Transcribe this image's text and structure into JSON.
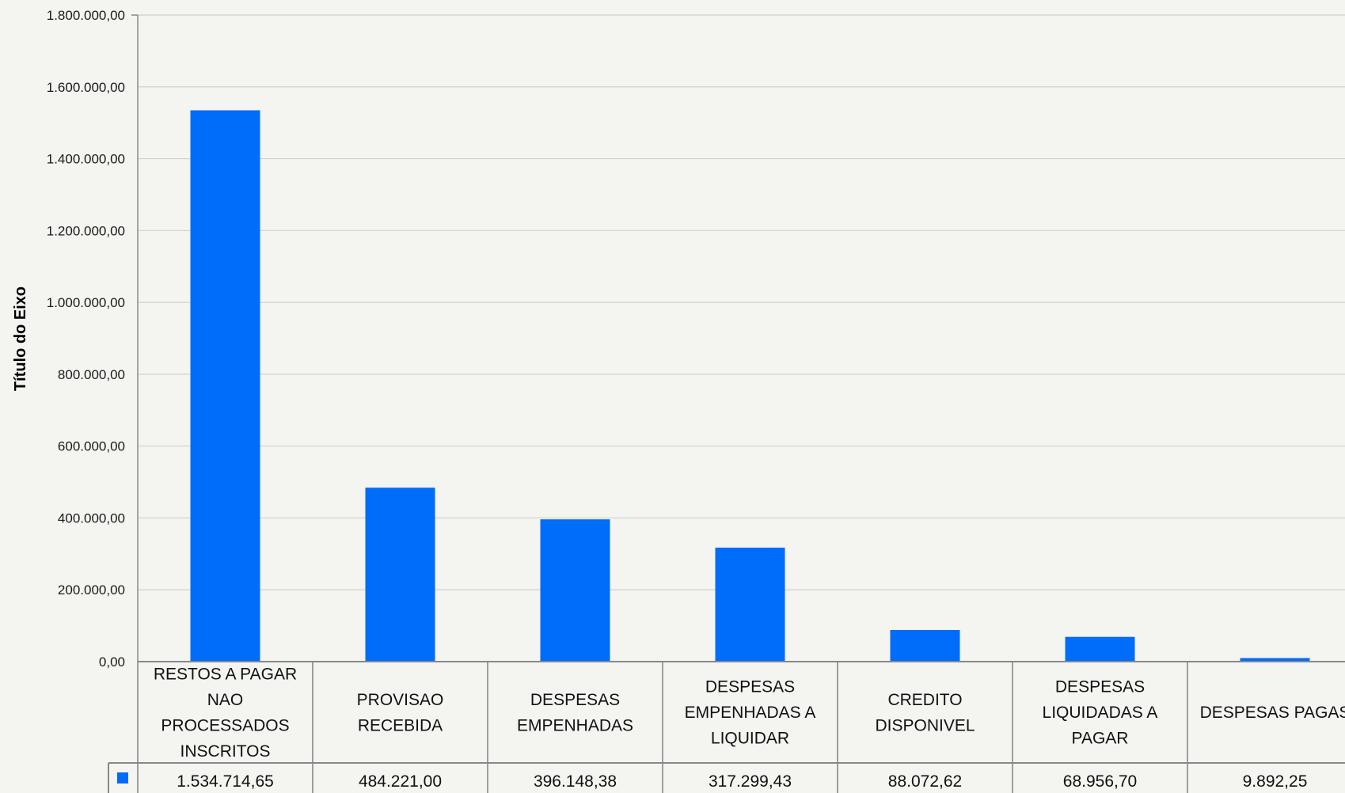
{
  "chart_data": {
    "type": "bar",
    "ylabel": "Título do Eixo",
    "ylim": [
      0,
      1800000
    ],
    "ytick_step": 200000,
    "yticks": [
      "0,00",
      "200.000,00",
      "400.000,00",
      "600.000,00",
      "800.000,00",
      "1.000.000,00",
      "1.200.000,00",
      "1.400.000,00",
      "1.600.000,00",
      "1.800.000,00"
    ],
    "grid": true,
    "legend": "data-table",
    "categories": [
      [
        "RESTOS A PAGAR",
        "NAO",
        "PROCESSADOS",
        "INSCRITOS"
      ],
      [
        "PROVISAO",
        "RECEBIDA"
      ],
      [
        "DESPESAS",
        "EMPENHADAS"
      ],
      [
        "DESPESAS",
        "EMPENHADAS A",
        "LIQUIDAR"
      ],
      [
        "CREDITO",
        "DISPONIVEL"
      ],
      [
        "DESPESAS",
        "LIQUIDADAS A",
        "PAGAR"
      ],
      [
        "DESPESAS PAGAS"
      ]
    ],
    "series": [
      {
        "color": "#006cfa",
        "values": [
          1534714.65,
          484221.0,
          396148.38,
          317299.43,
          88072.62,
          68956.7,
          9892.25
        ],
        "labels": [
          "1.534.714,65",
          "484.221,00",
          "396.148,38",
          "317.299,43",
          "88.072,62",
          "68.956,70",
          "9.892,25"
        ]
      }
    ]
  },
  "colors": {
    "bar": "#006cfa",
    "grid": "#cfcfcc",
    "axis": "#888888",
    "background": "#f4f4f1"
  }
}
